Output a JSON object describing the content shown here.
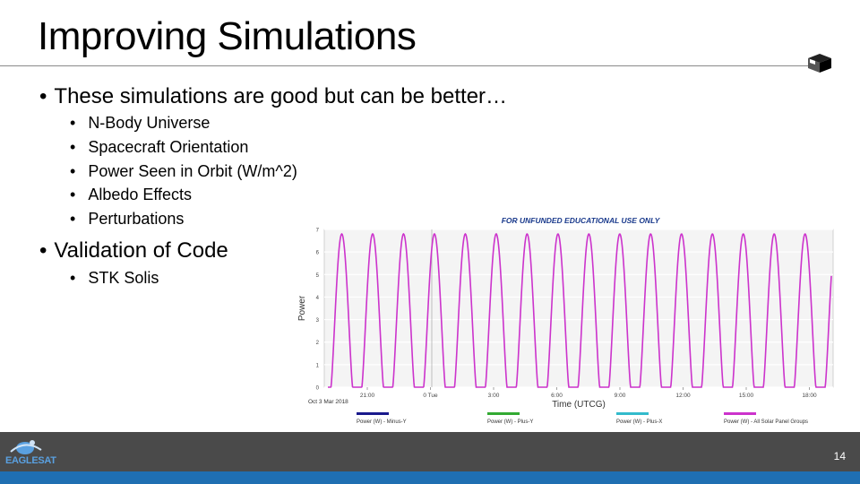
{
  "slide": {
    "title": "Improving Simulations",
    "page_number": "14",
    "logo_text": "EAGLESAT",
    "bullets": [
      {
        "text": "These simulations are good but can be better…",
        "sub": [
          "N-Body Universe",
          "Spacecraft Orientation",
          "Power Seen in Orbit (W/m^2)",
          "Albedo Effects",
          "Perturbations"
        ]
      },
      {
        "text": "Validation of Code",
        "sub": [
          "STK Solis"
        ]
      }
    ]
  },
  "colors": {
    "series_magenta": "#cc33cc",
    "series_blue": "#1a1a8c",
    "series_green": "#33aa33",
    "series_cyan": "#33bbcc",
    "footer": "#4a4a4a",
    "footer_strip": "#1f6fb2"
  },
  "chart_data": {
    "type": "line",
    "watermark": "FOR UNFUNDED EDUCATIONAL USE ONLY",
    "xlabel": "Time (UTCG)",
    "ylabel": "Power",
    "start_label": "Oct 3 Mar 2018",
    "x_ticks": [
      "21:00",
      "0 Tue",
      "3:00",
      "6:00",
      "9:00",
      "12:00",
      "15:00",
      "18:00"
    ],
    "ylim": [
      0,
      7
    ],
    "y_ticks": [
      "0",
      "1",
      "2",
      "3",
      "4",
      "5",
      "6",
      "7"
    ],
    "cycles": 16.3,
    "peak": 6.8,
    "series": [
      {
        "name": "Power (W) - Minus-Y",
        "color": "#1a1a8c"
      },
      {
        "name": "Power (W) - Plus-Y",
        "color": "#33aa33"
      },
      {
        "name": "Power (W) - Plus-X",
        "color": "#33bbcc"
      },
      {
        "name": "Power (W) - All Solar Panel Groups",
        "color": "#cc33cc"
      }
    ]
  }
}
